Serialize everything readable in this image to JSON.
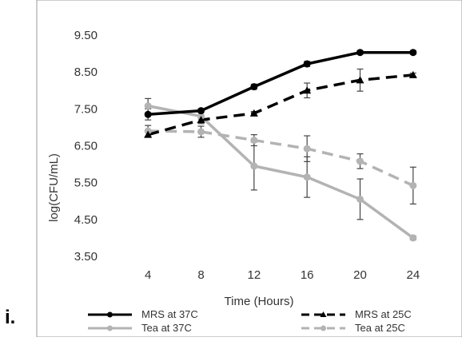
{
  "panel_label": "i.",
  "chart_data": {
    "type": "line",
    "title": "",
    "xlabel": "Time (Hours)",
    "ylabel": "log(CFU/mL)",
    "categories": [
      4,
      8,
      12,
      16,
      20,
      24
    ],
    "x_tick_labels": [
      "4",
      "8",
      "12",
      "16",
      "20",
      "24"
    ],
    "y_tick_labels": [
      "3.50",
      "4.50",
      "5.50",
      "6.50",
      "7.50",
      "8.50",
      "9.50"
    ],
    "ylim": [
      3.5,
      9.5
    ],
    "grid": false,
    "legend_position": "bottom",
    "series": [
      {
        "name": "MRS at 37C",
        "values": [
          7.35,
          7.45,
          8.1,
          8.72,
          9.03,
          9.03
        ],
        "errors": [
          0.15,
          0.05,
          0.07,
          0.07,
          0.05,
          0.05
        ],
        "color": "#000000",
        "style": "solid",
        "marker": "circle"
      },
      {
        "name": "MRS at 25C",
        "values": [
          6.8,
          7.2,
          7.38,
          8.0,
          8.28,
          8.42
        ],
        "errors": [
          0.07,
          0.05,
          0.05,
          0.2,
          0.3,
          0.05
        ],
        "color": "#000000",
        "style": "dashed",
        "marker": "triangle"
      },
      {
        "name": "Tea at 37C",
        "values": [
          7.58,
          7.3,
          5.95,
          5.65,
          5.05,
          4.0
        ],
        "errors": [
          0.2,
          0.2,
          0.65,
          0.55,
          0.55,
          0.05
        ],
        "color": "#b3b3b3",
        "style": "solid",
        "marker": "circle"
      },
      {
        "name": "Tea at 25C",
        "values": [
          6.9,
          6.88,
          6.65,
          6.42,
          6.08,
          5.42
        ],
        "errors": [
          0.15,
          0.15,
          0.15,
          0.35,
          0.2,
          0.5
        ],
        "color": "#b3b3b3",
        "style": "dashed",
        "marker": "circle"
      }
    ]
  }
}
